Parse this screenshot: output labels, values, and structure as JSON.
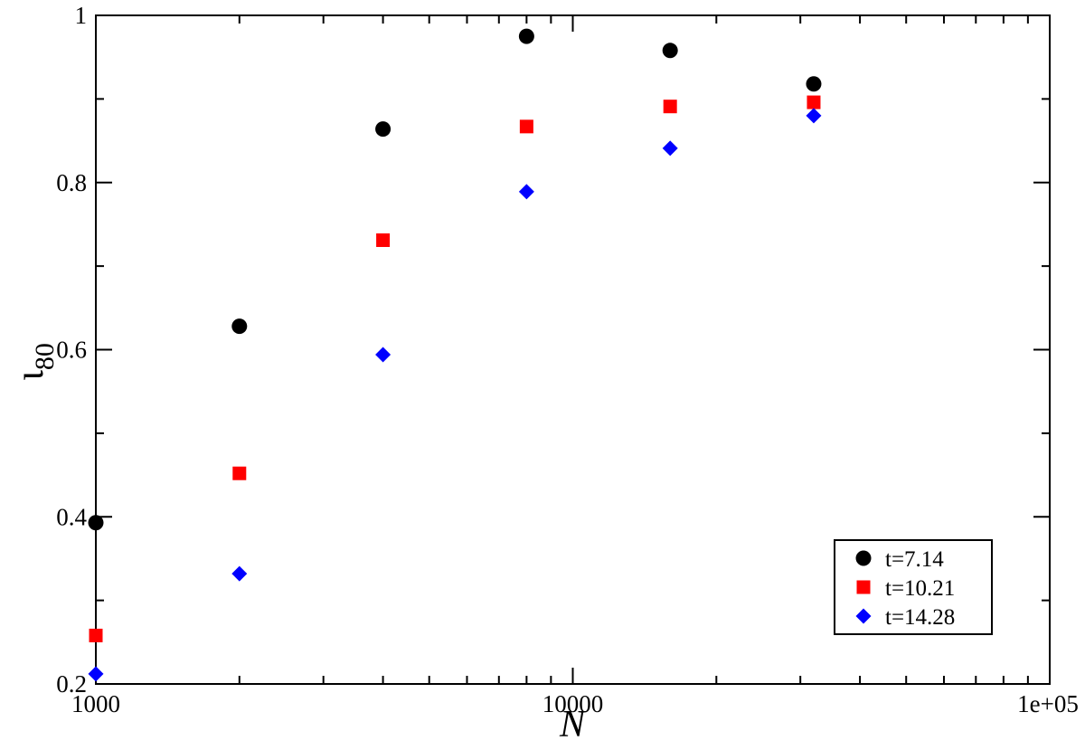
{
  "chart_data": {
    "type": "scatter",
    "title": "",
    "xlabel": "N",
    "ylabel_main": "ι",
    "ylabel_sub": "80",
    "xscale": "log",
    "xlim": [
      1000,
      100000
    ],
    "ylim": [
      0.2,
      1.0
    ],
    "x_tick_labels": [
      {
        "value": 1000,
        "label": "1000"
      },
      {
        "value": 10000,
        "label": "10000"
      },
      {
        "value": 100000,
        "label": "1e+05"
      }
    ],
    "y_tick_labels": [
      {
        "value": 0.2,
        "label": "0.2"
      },
      {
        "value": 0.4,
        "label": "0.4"
      },
      {
        "value": 0.6,
        "label": "0.6"
      },
      {
        "value": 0.8,
        "label": "0.8"
      },
      {
        "value": 1.0,
        "label": "1"
      }
    ],
    "legend_position": "bottom-right",
    "grid": false,
    "series": [
      {
        "name": "t=7.14",
        "marker": "circle",
        "color": "#000000",
        "x": [
          1000,
          2000,
          4000,
          8000,
          16000,
          32000
        ],
        "y": [
          0.393,
          0.628,
          0.864,
          0.975,
          0.958,
          0.918
        ]
      },
      {
        "name": "t=10.21",
        "marker": "square",
        "color": "#ff0000",
        "x": [
          1000,
          2000,
          4000,
          8000,
          16000,
          32000
        ],
        "y": [
          0.258,
          0.452,
          0.731,
          0.867,
          0.891,
          0.896
        ]
      },
      {
        "name": "t=14.28",
        "marker": "diamond",
        "color": "#0000ff",
        "x": [
          1000,
          2000,
          4000,
          8000,
          16000,
          32000
        ],
        "y": [
          0.212,
          0.332,
          0.594,
          0.789,
          0.841,
          0.88
        ]
      }
    ]
  }
}
